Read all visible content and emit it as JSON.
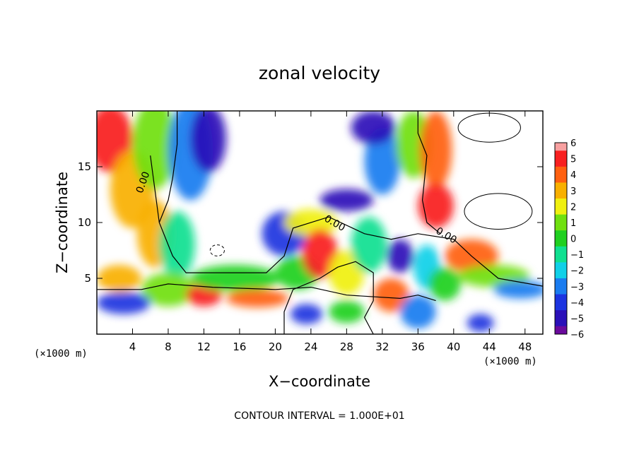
{
  "chart_data": {
    "type": "heatmap",
    "title": "zonal velocity",
    "xlabel": "X−coordinate",
    "ylabel": "Z−coordinate",
    "x_unit_label": "(×1000 m)",
    "x_unit_label_right": "(×1000 m)",
    "footer": "CONTOUR INTERVAL = 1.000E+01",
    "xlim": [
      0,
      50
    ],
    "ylim": [
      0,
      20
    ],
    "xticks": [
      4,
      8,
      12,
      16,
      20,
      24,
      28,
      32,
      36,
      40,
      44,
      48
    ],
    "xtick_labels": [
      "4",
      "8",
      "12",
      "16",
      "20",
      "24",
      "28",
      "32",
      "36",
      "40",
      "44",
      "48"
    ],
    "yticks": [
      5,
      10,
      15
    ],
    "ytick_labels": [
      "5",
      "10",
      "15"
    ],
    "colorbar": {
      "range": [
        -6,
        6
      ],
      "tick_labels": [
        "6",
        "5",
        "4",
        "3",
        "2",
        "1",
        "0",
        "−1",
        "−2",
        "−3",
        "−4",
        "−5",
        "−6"
      ],
      "stops": [
        {
          "value": -6,
          "color": "#6a0a9c"
        },
        {
          "value": -5,
          "color": "#2a10b8"
        },
        {
          "value": -4,
          "color": "#1c34e0"
        },
        {
          "value": -3,
          "color": "#1a7cf0"
        },
        {
          "value": -2,
          "color": "#10d0e8"
        },
        {
          "value": -1,
          "color": "#10e090"
        },
        {
          "value": 0,
          "color": "#20d020"
        },
        {
          "value": 1,
          "color": "#70e010"
        },
        {
          "value": 2,
          "color": "#f0f010"
        },
        {
          "value": 3,
          "color": "#f8b000"
        },
        {
          "value": 4,
          "color": "#ff6010"
        },
        {
          "value": 5,
          "color": "#f82020"
        },
        {
          "value": 6,
          "color": "#f8a0a0"
        }
      ]
    },
    "contour_labels": [
      {
        "text": "0.00",
        "x": 5.5,
        "y": 13.5
      },
      {
        "text": "0.00",
        "x": 26.5,
        "y": 9.7
      },
      {
        "text": "0.00",
        "x": 39,
        "y": 8.6
      }
    ],
    "field_features": [
      {
        "x": 1.5,
        "y": 17.5,
        "sx": 2.5,
        "sy": 3.0,
        "value": 5.5
      },
      {
        "x": 4.0,
        "y": 13.0,
        "sx": 2.5,
        "sy": 3.5,
        "value": 3.5
      },
      {
        "x": 6.5,
        "y": 9.0,
        "sx": 2.0,
        "sy": 3.0,
        "value": 3.0
      },
      {
        "x": 6.5,
        "y": 17.0,
        "sx": 2.5,
        "sy": 4.0,
        "value": 1.5
      },
      {
        "x": 10.5,
        "y": 16.5,
        "sx": 2.5,
        "sy": 4.5,
        "value": -3.0
      },
      {
        "x": 12.5,
        "y": 17.5,
        "sx": 2.0,
        "sy": 3.0,
        "value": -5.0
      },
      {
        "x": 9.0,
        "y": 8.0,
        "sx": 2.0,
        "sy": 3.0,
        "value": -1.0
      },
      {
        "x": 2.5,
        "y": 5.0,
        "sx": 2.5,
        "sy": 1.2,
        "value": 3.0
      },
      {
        "x": 8.0,
        "y": 4.0,
        "sx": 3.0,
        "sy": 1.5,
        "value": 1.5
      },
      {
        "x": 3.0,
        "y": 2.8,
        "sx": 3.0,
        "sy": 1.0,
        "value": -3.5
      },
      {
        "x": 12.0,
        "y": 3.5,
        "sx": 2.0,
        "sy": 1.0,
        "value": 5.0
      },
      {
        "x": 15.5,
        "y": 5.0,
        "sx": 5.0,
        "sy": 1.2,
        "value": 0.0
      },
      {
        "x": 18.0,
        "y": 3.2,
        "sx": 3.5,
        "sy": 0.8,
        "value": 4.5
      },
      {
        "x": 22.5,
        "y": 5.5,
        "sx": 2.5,
        "sy": 1.5,
        "value": 0.0
      },
      {
        "x": 21.0,
        "y": 9.0,
        "sx": 2.5,
        "sy": 2.0,
        "value": -3.5
      },
      {
        "x": 24.0,
        "y": 10.0,
        "sx": 3.0,
        "sy": 1.2,
        "value": 2.0
      },
      {
        "x": 25.0,
        "y": 7.2,
        "sx": 2.0,
        "sy": 2.2,
        "value": 5.0
      },
      {
        "x": 28.0,
        "y": 5.5,
        "sx": 2.0,
        "sy": 2.0,
        "value": 2.5
      },
      {
        "x": 30.5,
        "y": 8.0,
        "sx": 2.0,
        "sy": 2.5,
        "value": -1.0
      },
      {
        "x": 28.0,
        "y": 12.0,
        "sx": 3.0,
        "sy": 1.0,
        "value": -4.5
      },
      {
        "x": 23.5,
        "y": 1.8,
        "sx": 1.8,
        "sy": 0.9,
        "value": -4.0
      },
      {
        "x": 28.0,
        "y": 2.0,
        "sx": 2.0,
        "sy": 1.0,
        "value": 0.0
      },
      {
        "x": 33.0,
        "y": 3.5,
        "sx": 2.0,
        "sy": 1.5,
        "value": 4.5
      },
      {
        "x": 34.0,
        "y": 7.0,
        "sx": 1.5,
        "sy": 1.5,
        "value": -4.5
      },
      {
        "x": 32.0,
        "y": 15.5,
        "sx": 2.0,
        "sy": 3.0,
        "value": -2.5
      },
      {
        "x": 31.0,
        "y": 18.5,
        "sx": 2.5,
        "sy": 1.5,
        "value": -5.0
      },
      {
        "x": 35.5,
        "y": 17.0,
        "sx": 2.0,
        "sy": 3.0,
        "value": 1.0
      },
      {
        "x": 38.0,
        "y": 16.5,
        "sx": 1.8,
        "sy": 3.5,
        "value": 4.5
      },
      {
        "x": 38.0,
        "y": 11.5,
        "sx": 2.0,
        "sy": 2.0,
        "value": 5.0
      },
      {
        "x": 37.0,
        "y": 6.0,
        "sx": 1.5,
        "sy": 2.0,
        "value": -2.0
      },
      {
        "x": 39.0,
        "y": 4.5,
        "sx": 1.8,
        "sy": 1.5,
        "value": 0.5
      },
      {
        "x": 42.0,
        "y": 7.0,
        "sx": 3.0,
        "sy": 1.5,
        "value": 4.0
      },
      {
        "x": 44.5,
        "y": 5.2,
        "sx": 4.0,
        "sy": 1.0,
        "value": 1.5
      },
      {
        "x": 47.5,
        "y": 4.0,
        "sx": 3.0,
        "sy": 0.8,
        "value": -3.0
      },
      {
        "x": 43.0,
        "y": 1.0,
        "sx": 1.5,
        "sy": 0.8,
        "value": -4.0
      },
      {
        "x": 36.0,
        "y": 2.0,
        "sx": 2.0,
        "sy": 1.5,
        "value": -3.0
      }
    ]
  }
}
